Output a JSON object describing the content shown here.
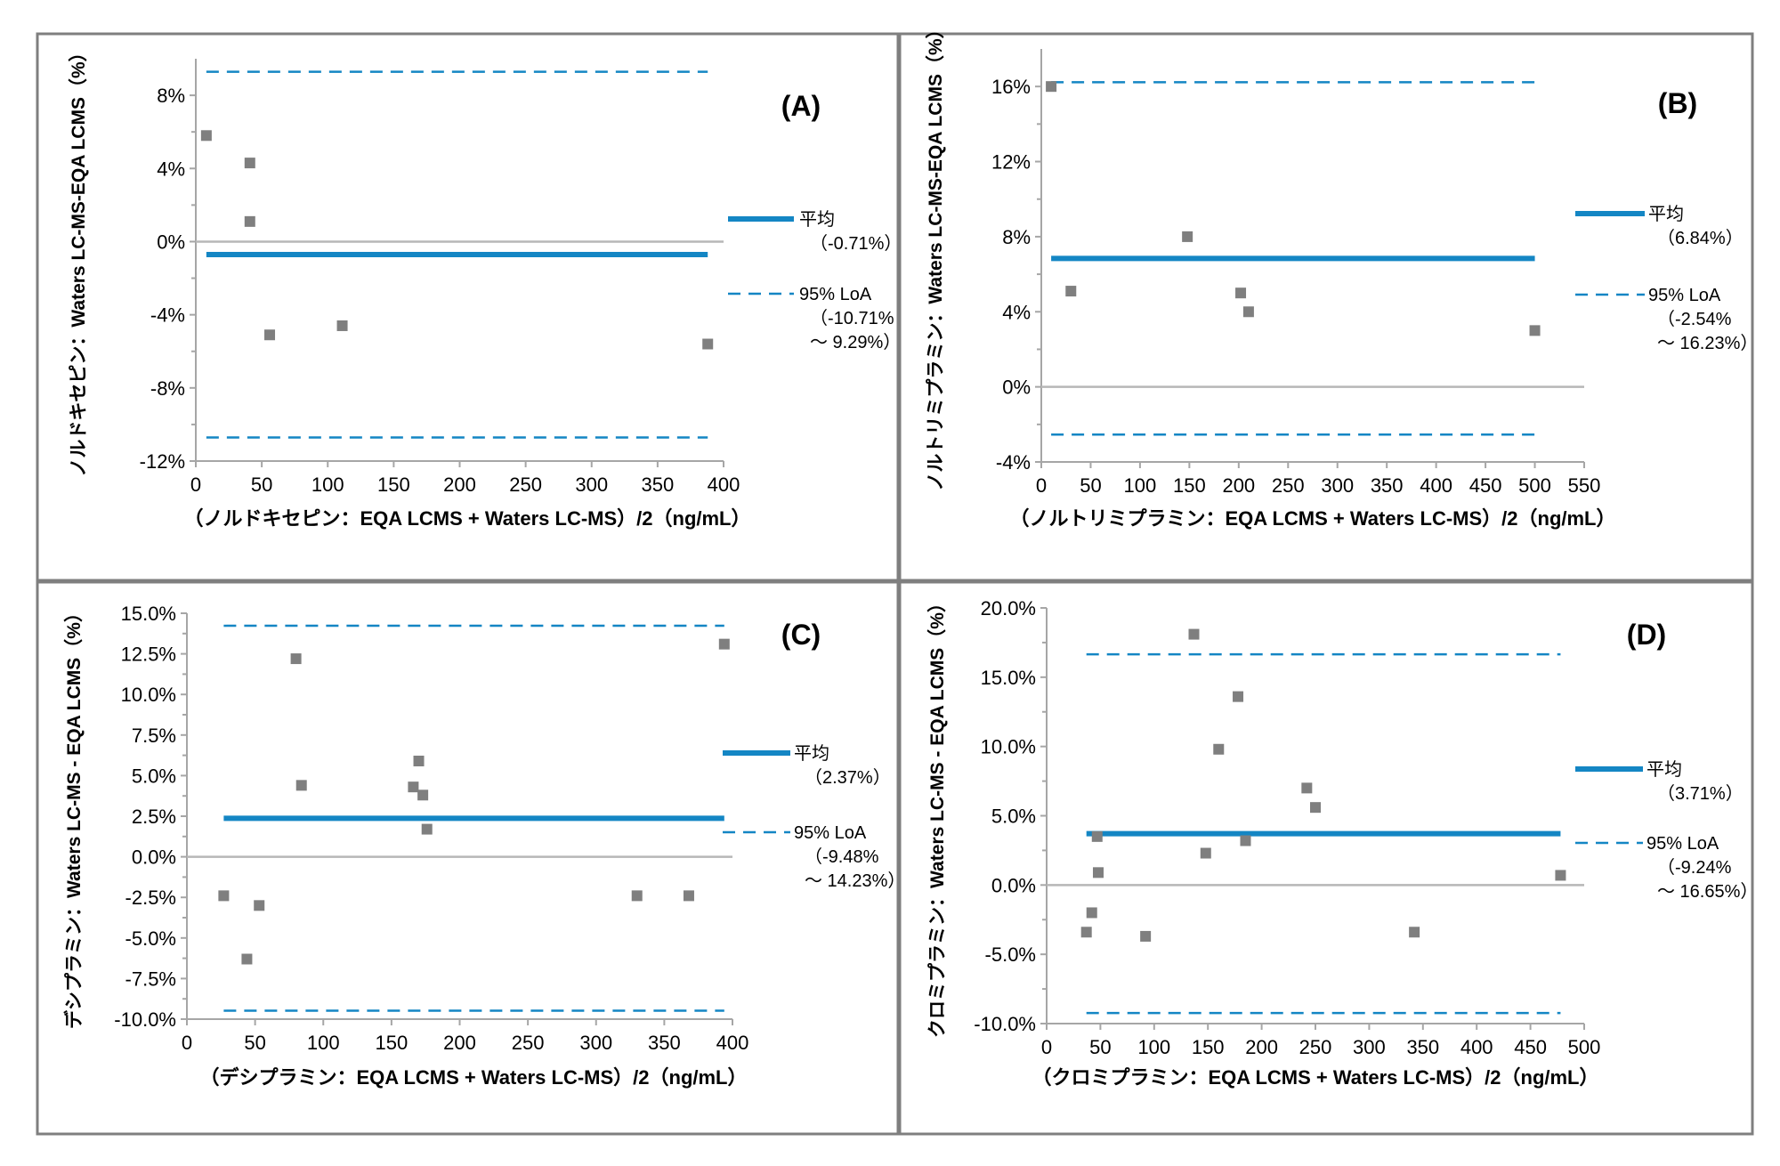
{
  "colors": {
    "mean": "#1486c4",
    "loa": "#1486c4",
    "point": "#7f7f7f",
    "zero": "#b7b7b7",
    "axis": "#a6a6a6",
    "border": "#7f7f7f",
    "text": "#000000"
  },
  "chart_data": [
    {
      "type": "scatter",
      "panel_label": "(A)",
      "xlabel": "（ノルドキセピン：EQA LCMS + Waters LC-MS）/2（ng/mL）",
      "ylabel": "ノルドキセピン：Waters LC-MS-EQA LCMS（%）",
      "xlim": [
        0,
        400
      ],
      "ylim": [
        -12,
        10
      ],
      "xticks": [
        0,
        50,
        100,
        150,
        200,
        250,
        300,
        350,
        400
      ],
      "yticks": [
        8,
        4,
        0,
        -4,
        -8,
        -12
      ],
      "ytick_labels": [
        "8%",
        "4%",
        "0%",
        "-4%",
        "-8%",
        "-12%"
      ],
      "points": [
        [
          8,
          5.8
        ],
        [
          41,
          4.3
        ],
        [
          41,
          1.1
        ],
        [
          56,
          -5.1
        ],
        [
          111,
          -4.6
        ],
        [
          388,
          -5.6
        ]
      ],
      "mean": -0.71,
      "loa_upper": 9.29,
      "loa_lower": -10.71,
      "mean_x": [
        8,
        388
      ],
      "loa_x": [
        8,
        388
      ],
      "legend": {
        "mean_label": "平均",
        "mean_value": "（-0.71%）",
        "loa_label": "95% LoA",
        "loa_range_1": "（-10.71%",
        "loa_range_2": "～ 9.29%）"
      }
    },
    {
      "type": "scatter",
      "panel_label": "(B)",
      "xlabel": "（ノルトリミプラミン：EQA LCMS + Waters LC-MS）/2（ng/mL）",
      "ylabel": "ノルトリミプラミン：Waters LC-MS-EQA LCMS（%）",
      "xlim": [
        0,
        550
      ],
      "ylim": [
        -4,
        18
      ],
      "xticks": [
        0,
        50,
        100,
        150,
        200,
        250,
        300,
        350,
        400,
        450,
        500,
        550
      ],
      "yticks": [
        16,
        12,
        8,
        4,
        0,
        -4
      ],
      "ytick_labels": [
        "16%",
        "12%",
        "8%",
        "4%",
        "0%",
        "-4%"
      ],
      "points": [
        [
          10,
          16.0
        ],
        [
          30,
          5.1
        ],
        [
          148,
          8.0
        ],
        [
          202,
          5.0
        ],
        [
          210,
          4.0
        ],
        [
          500,
          3.0
        ]
      ],
      "mean": 6.84,
      "loa_upper": 16.23,
      "loa_lower": -2.54,
      "mean_x": [
        10,
        500
      ],
      "loa_x": [
        10,
        500
      ],
      "legend": {
        "mean_label": "平均",
        "mean_value": "（6.84%）",
        "loa_label": "95% LoA",
        "loa_range_1": "（-2.54%",
        "loa_range_2": "～ 16.23%）"
      }
    },
    {
      "type": "scatter",
      "panel_label": "(C)",
      "xlabel": "（デシプラミン：EQA LCMS + Waters LC-MS）/2（ng/mL）",
      "ylabel": "デシプラミン：Waters LC-MS - EQA LCMS（%）",
      "xlim": [
        0,
        400
      ],
      "ylim": [
        -10,
        15
      ],
      "xticks": [
        0,
        50,
        100,
        150,
        200,
        250,
        300,
        350,
        400
      ],
      "yticks": [
        15,
        12.5,
        10,
        7.5,
        5,
        2.5,
        0,
        -2.5,
        -5,
        -7.5,
        -10
      ],
      "ytick_labels": [
        "15.0%",
        "12.5%",
        "10.0%",
        "7.5%",
        "5.0%",
        "2.5%",
        "0.0%",
        "-2.5%",
        "-5.0%",
        "-7.5%",
        "-10.0%"
      ],
      "points": [
        [
          27,
          -2.4
        ],
        [
          44,
          -6.3
        ],
        [
          53,
          -3.0
        ],
        [
          80,
          12.2
        ],
        [
          84,
          4.4
        ],
        [
          166,
          4.3
        ],
        [
          170,
          5.9
        ],
        [
          173,
          3.8
        ],
        [
          176,
          1.7
        ],
        [
          330,
          -2.4
        ],
        [
          368,
          -2.4
        ],
        [
          394,
          13.1
        ]
      ],
      "mean": 2.37,
      "loa_upper": 14.23,
      "loa_lower": -9.48,
      "mean_x": [
        27,
        394
      ],
      "loa_x": [
        27,
        394
      ],
      "legend": {
        "mean_label": "平均",
        "mean_value": "（2.37%）",
        "loa_label": "95% LoA",
        "loa_range_1": "（-9.48%",
        "loa_range_2": "～ 14.23%）"
      }
    },
    {
      "type": "scatter",
      "panel_label": "(D)",
      "xlabel": "（クロミプラミン：EQA LCMS + Waters LC-MS）/2（ng/mL）",
      "ylabel": "クロミプラミン：Waters LC-MS - EQA LCMS（%）",
      "xlim": [
        0,
        500
      ],
      "ylim": [
        -10,
        20
      ],
      "xticks": [
        0,
        50,
        100,
        150,
        200,
        250,
        300,
        350,
        400,
        450,
        500
      ],
      "yticks": [
        20,
        15,
        10,
        5,
        0,
        -5,
        -10
      ],
      "ytick_labels": [
        "20.0%",
        "15.0%",
        "10.0%",
        "5.0%",
        "0.0%",
        "-5.0%",
        "-10.0%"
      ],
      "points": [
        [
          37,
          -3.4
        ],
        [
          42,
          -2.0
        ],
        [
          47,
          3.5
        ],
        [
          48,
          0.9
        ],
        [
          92,
          -3.7
        ],
        [
          137,
          18.1
        ],
        [
          148,
          2.3
        ],
        [
          160,
          9.8
        ],
        [
          178,
          13.6
        ],
        [
          185,
          3.2
        ],
        [
          242,
          7.0
        ],
        [
          250,
          5.6
        ],
        [
          342,
          -3.4
        ],
        [
          478,
          0.7
        ]
      ],
      "mean": 3.71,
      "loa_upper": 16.65,
      "loa_lower": -9.24,
      "mean_x": [
        37,
        478
      ],
      "loa_x": [
        37,
        478
      ],
      "legend": {
        "mean_label": "平均",
        "mean_value": "（3.71%）",
        "loa_label": "95% LoA",
        "loa_range_1": "（-9.24%",
        "loa_range_2": "～ 16.65%）"
      }
    }
  ]
}
